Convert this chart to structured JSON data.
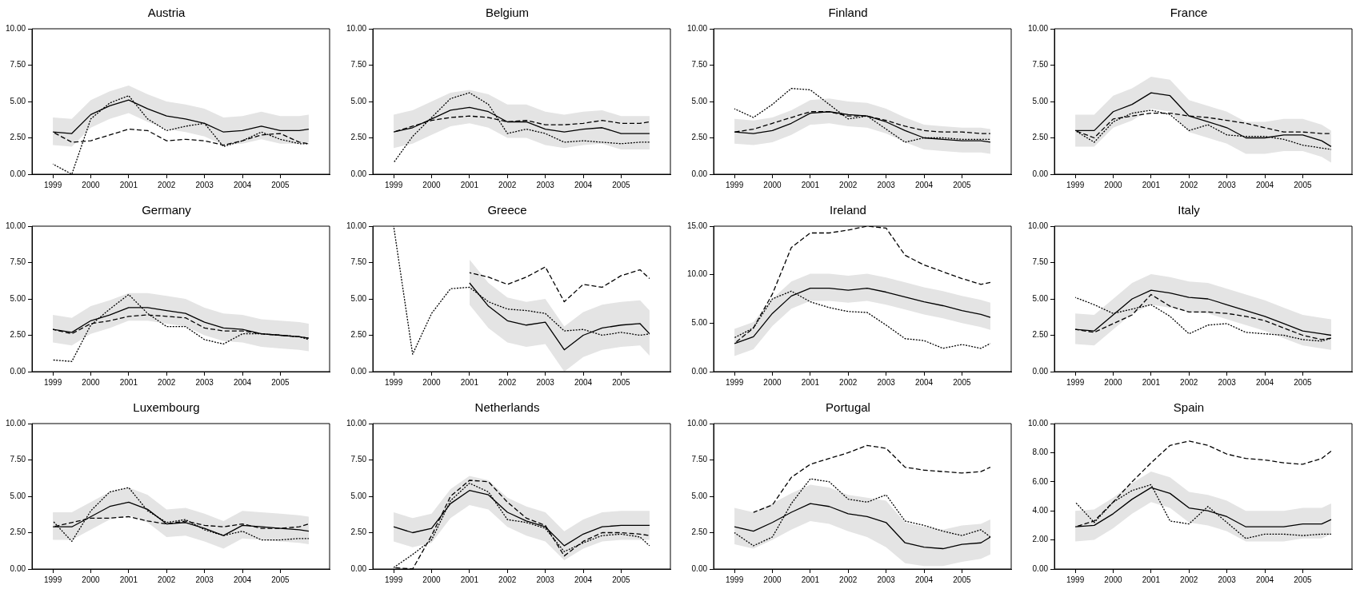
{
  "chart_data": [
    {
      "type": "line",
      "title": "Austria",
      "x": [
        1999,
        1999.5,
        2000,
        2000.5,
        2001,
        2001.5,
        2002,
        2002.5,
        2003,
        2003.5,
        2004,
        2004.5,
        2005,
        2005.5,
        2005.75
      ],
      "xlim": [
        1998.45,
        2006.3
      ],
      "xticks": [
        1999,
        2000,
        2001,
        2002,
        2003,
        2004,
        2005
      ],
      "ylim": [
        0,
        10
      ],
      "yticks": [
        {
          "value": 0,
          "label": "0.00"
        },
        {
          "value": 2.5,
          "label": "2.50"
        },
        {
          "value": 5,
          "label": "5.00"
        },
        {
          "value": 7.5,
          "label": "7.50"
        },
        {
          "value": 10,
          "label": "10.00"
        }
      ],
      "grid": false,
      "legend": false,
      "marker": "none",
      "series": [
        {
          "color": "#000000",
          "line_style": "solid",
          "values": [
            2.9,
            2.8,
            4.1,
            4.7,
            5.1,
            4.5,
            4.0,
            3.8,
            3.5,
            2.9,
            3.0,
            3.3,
            3.0,
            3.0,
            3.1
          ],
          "lower": [
            2.0,
            1.9,
            3.2,
            3.8,
            4.2,
            3.6,
            3.1,
            2.9,
            2.6,
            2.0,
            2.1,
            2.4,
            2.1,
            2.1,
            2.2
          ],
          "upper": [
            3.9,
            3.8,
            5.1,
            5.7,
            6.1,
            5.5,
            5.0,
            4.8,
            4.5,
            3.9,
            4.0,
            4.3,
            4.0,
            4.0,
            4.1
          ]
        },
        {
          "color": "#000000",
          "line_style": "dashed",
          "values": [
            2.9,
            2.2,
            2.3,
            2.7,
            3.1,
            3.0,
            2.3,
            2.4,
            2.3,
            2.0,
            2.3,
            2.7,
            2.8,
            2.2,
            2.1
          ]
        },
        {
          "color": "#000000",
          "line_style": "dotted",
          "values": [
            0.7,
            0.0,
            3.8,
            4.9,
            5.4,
            3.8,
            3.0,
            3.3,
            3.5,
            1.9,
            2.3,
            2.9,
            2.4,
            2.1,
            2.1
          ]
        }
      ]
    },
    {
      "type": "line",
      "title": "Belgium",
      "x": [
        1999,
        1999.5,
        2000,
        2000.5,
        2001,
        2001.5,
        2002,
        2002.5,
        2003,
        2003.5,
        2004,
        2004.5,
        2005,
        2005.5,
        2005.75
      ],
      "xlim": [
        1998.45,
        2006.3
      ],
      "xticks": [
        1999,
        2000,
        2001,
        2002,
        2003,
        2004,
        2005
      ],
      "ylim": [
        0,
        10
      ],
      "yticks": [
        {
          "value": 0,
          "label": "0.00"
        },
        {
          "value": 2.5,
          "label": "2.50"
        },
        {
          "value": 5,
          "label": "5.00"
        },
        {
          "value": 7.5,
          "label": "7.50"
        },
        {
          "value": 10,
          "label": "10.00"
        }
      ],
      "grid": false,
      "legend": false,
      "marker": "none",
      "series": [
        {
          "color": "#000000",
          "line_style": "solid",
          "values": [
            2.9,
            3.2,
            3.8,
            4.4,
            4.6,
            4.3,
            3.6,
            3.6,
            3.1,
            2.9,
            3.1,
            3.2,
            2.8,
            2.8,
            2.8
          ],
          "lower": [
            1.8,
            2.1,
            2.7,
            3.3,
            3.5,
            3.2,
            2.5,
            2.5,
            2.0,
            1.8,
            2.0,
            2.1,
            1.7,
            1.7,
            1.7
          ],
          "upper": [
            4.1,
            4.4,
            5.0,
            5.6,
            5.8,
            5.5,
            4.8,
            4.8,
            4.3,
            4.1,
            4.3,
            4.4,
            4.0,
            4.0,
            4.0
          ]
        },
        {
          "color": "#000000",
          "line_style": "dashed",
          "values": [
            2.9,
            3.3,
            3.7,
            3.9,
            4.0,
            3.9,
            3.6,
            3.7,
            3.4,
            3.4,
            3.5,
            3.7,
            3.5,
            3.5,
            3.6
          ]
        },
        {
          "color": "#000000",
          "line_style": "dotted",
          "values": [
            0.8,
            2.6,
            3.9,
            5.2,
            5.6,
            4.8,
            2.8,
            3.1,
            2.8,
            2.2,
            2.3,
            2.2,
            2.1,
            2.2,
            2.2
          ]
        }
      ]
    },
    {
      "type": "line",
      "title": "Finland",
      "x": [
        1999,
        1999.5,
        2000,
        2000.5,
        2001,
        2001.5,
        2002,
        2002.5,
        2003,
        2003.5,
        2004,
        2004.5,
        2005,
        2005.5,
        2005.75
      ],
      "xlim": [
        1998.45,
        2006.3
      ],
      "xticks": [
        1999,
        2000,
        2001,
        2002,
        2003,
        2004,
        2005
      ],
      "ylim": [
        0,
        10
      ],
      "yticks": [
        {
          "value": 0,
          "label": "0.00"
        },
        {
          "value": 2.5,
          "label": "2.50"
        },
        {
          "value": 5,
          "label": "5.00"
        },
        {
          "value": 7.5,
          "label": "7.50"
        },
        {
          "value": 10,
          "label": "10.00"
        }
      ],
      "grid": false,
      "legend": false,
      "marker": "none",
      "series": [
        {
          "color": "#000000",
          "line_style": "solid",
          "values": [
            2.9,
            2.8,
            3.0,
            3.5,
            4.2,
            4.3,
            4.1,
            4.0,
            3.6,
            3.0,
            2.5,
            2.4,
            2.3,
            2.3,
            2.2
          ],
          "lower": [
            2.1,
            2.0,
            2.2,
            2.7,
            3.4,
            3.5,
            3.3,
            3.2,
            2.8,
            2.2,
            1.7,
            1.6,
            1.5,
            1.5,
            1.4
          ],
          "upper": [
            3.8,
            3.7,
            3.9,
            4.4,
            5.1,
            5.2,
            5.0,
            4.9,
            4.5,
            3.9,
            3.4,
            3.3,
            3.2,
            3.2,
            3.1
          ]
        },
        {
          "color": "#000000",
          "line_style": "dashed",
          "values": [
            2.9,
            3.1,
            3.5,
            3.9,
            4.3,
            4.3,
            4.0,
            4.0,
            3.7,
            3.3,
            3.0,
            2.9,
            2.9,
            2.8,
            2.8
          ]
        },
        {
          "color": "#000000",
          "line_style": "dotted",
          "values": [
            4.5,
            3.9,
            4.8,
            5.9,
            5.8,
            4.8,
            3.8,
            4.0,
            3.1,
            2.2,
            2.5,
            2.5,
            2.4,
            2.4,
            2.4
          ]
        }
      ]
    },
    {
      "type": "line",
      "title": "France",
      "x": [
        1999,
        1999.5,
        2000,
        2000.5,
        2001,
        2001.5,
        2002,
        2002.5,
        2003,
        2003.5,
        2004,
        2004.5,
        2005,
        2005.5,
        2005.75
      ],
      "xlim": [
        1998.45,
        2006.3
      ],
      "xticks": [
        1999,
        2000,
        2001,
        2002,
        2003,
        2004,
        2005
      ],
      "ylim": [
        0,
        10
      ],
      "yticks": [
        {
          "value": 0,
          "label": "0.00"
        },
        {
          "value": 2.5,
          "label": "2.50"
        },
        {
          "value": 5,
          "label": "5.00"
        },
        {
          "value": 7.5,
          "label": "7.50"
        },
        {
          "value": 10,
          "label": "10.00"
        }
      ],
      "grid": false,
      "legend": false,
      "marker": "none",
      "series": [
        {
          "color": "#000000",
          "line_style": "solid",
          "values": [
            3.0,
            3.0,
            4.3,
            4.8,
            5.6,
            5.4,
            4.0,
            3.6,
            3.2,
            2.5,
            2.5,
            2.7,
            2.7,
            2.3,
            1.9
          ],
          "lower": [
            1.9,
            1.9,
            3.2,
            3.7,
            4.5,
            4.3,
            2.9,
            2.5,
            2.1,
            1.4,
            1.4,
            1.6,
            1.6,
            1.2,
            0.8
          ],
          "upper": [
            4.1,
            4.1,
            5.4,
            5.9,
            6.7,
            6.5,
            5.1,
            4.7,
            4.3,
            3.6,
            3.6,
            3.8,
            3.8,
            3.4,
            3.0
          ]
        },
        {
          "color": "#000000",
          "line_style": "dashed",
          "values": [
            3.0,
            2.5,
            3.8,
            4.0,
            4.2,
            4.2,
            4.0,
            3.9,
            3.7,
            3.5,
            3.2,
            2.9,
            2.9,
            2.8,
            2.8
          ]
        },
        {
          "color": "#000000",
          "line_style": "dotted",
          "values": [
            3.0,
            2.2,
            3.6,
            4.2,
            4.4,
            4.1,
            3.0,
            3.4,
            2.7,
            2.6,
            2.6,
            2.4,
            2.0,
            1.8,
            1.7
          ]
        }
      ]
    },
    {
      "type": "line",
      "title": "Germany",
      "x": [
        1999,
        1999.5,
        2000,
        2000.5,
        2001,
        2001.5,
        2002,
        2002.5,
        2003,
        2003.5,
        2004,
        2004.5,
        2005,
        2005.5,
        2005.75
      ],
      "xlim": [
        1998.45,
        2006.3
      ],
      "xticks": [
        1999,
        2000,
        2001,
        2002,
        2003,
        2004,
        2005
      ],
      "ylim": [
        0,
        10
      ],
      "yticks": [
        {
          "value": 0,
          "label": "0.00"
        },
        {
          "value": 2.5,
          "label": "2.50"
        },
        {
          "value": 5,
          "label": "5.00"
        },
        {
          "value": 7.5,
          "label": "7.50"
        },
        {
          "value": 10,
          "label": "10.00"
        }
      ],
      "grid": false,
      "legend": false,
      "marker": "none",
      "series": [
        {
          "color": "#000000",
          "line_style": "solid",
          "values": [
            2.9,
            2.7,
            3.5,
            3.9,
            4.4,
            4.4,
            4.2,
            4.0,
            3.4,
            3.0,
            2.9,
            2.6,
            2.5,
            2.4,
            2.3
          ],
          "lower": [
            2.0,
            1.8,
            2.6,
            3.0,
            3.5,
            3.5,
            3.3,
            3.1,
            2.5,
            2.1,
            2.0,
            1.7,
            1.6,
            1.5,
            1.4
          ],
          "upper": [
            3.9,
            3.7,
            4.5,
            4.9,
            5.4,
            5.4,
            5.2,
            5.0,
            4.4,
            4.0,
            3.9,
            3.6,
            3.5,
            3.4,
            3.3
          ]
        },
        {
          "color": "#000000",
          "line_style": "dashed",
          "values": [
            2.9,
            2.6,
            3.3,
            3.5,
            3.8,
            3.9,
            3.8,
            3.7,
            3.0,
            2.8,
            2.8,
            2.6,
            2.5,
            2.4,
            2.3
          ]
        },
        {
          "color": "#000000",
          "line_style": "dotted",
          "values": [
            0.8,
            0.7,
            3.2,
            4.3,
            5.3,
            4.0,
            3.1,
            3.1,
            2.2,
            1.9,
            2.6,
            2.6,
            2.5,
            2.4,
            2.2
          ]
        }
      ]
    },
    {
      "type": "line",
      "title": "Greece",
      "x": [
        1999,
        1999.5,
        2000,
        2000.5,
        2001,
        2001.5,
        2002,
        2002.5,
        2003,
        2003.5,
        2004,
        2004.5,
        2005,
        2005.5,
        2005.75
      ],
      "xlim": [
        1998.45,
        2006.3
      ],
      "xticks": [
        1999,
        2000,
        2001,
        2002,
        2003,
        2004,
        2005
      ],
      "ylim": [
        0,
        10
      ],
      "yticks": [
        {
          "value": 0,
          "label": "0.00"
        },
        {
          "value": 2.5,
          "label": "2.50"
        },
        {
          "value": 5,
          "label": "5.00"
        },
        {
          "value": 7.5,
          "label": "7.50"
        },
        {
          "value": 10,
          "label": "10.00"
        }
      ],
      "grid": false,
      "legend": false,
      "marker": "none",
      "series": [
        {
          "color": "#000000",
          "line_style": "solid",
          "values": [
            null,
            null,
            null,
            null,
            6.1,
            4.5,
            3.5,
            3.2,
            3.4,
            1.5,
            2.5,
            3.0,
            3.2,
            3.3,
            2.6
          ],
          "lower": [
            null,
            null,
            null,
            null,
            4.6,
            3.0,
            2.0,
            1.7,
            1.9,
            0.0,
            1.0,
            1.5,
            1.7,
            1.8,
            1.1
          ],
          "upper": [
            null,
            null,
            null,
            null,
            7.7,
            6.1,
            5.1,
            4.8,
            5.0,
            3.1,
            4.1,
            4.6,
            4.8,
            4.9,
            4.2
          ]
        },
        {
          "color": "#000000",
          "line_style": "dashed",
          "values": [
            null,
            null,
            null,
            null,
            6.8,
            6.5,
            6.0,
            6.5,
            7.2,
            4.8,
            6.0,
            5.8,
            6.6,
            7.0,
            6.4
          ]
        },
        {
          "color": "#000000",
          "line_style": "dotted",
          "values": [
            10.0,
            1.2,
            4.0,
            5.7,
            5.8,
            4.8,
            4.3,
            4.2,
            4.0,
            2.8,
            2.9,
            2.5,
            2.7,
            2.5,
            2.6
          ]
        }
      ]
    },
    {
      "type": "line",
      "title": "Ireland",
      "x": [
        1999,
        1999.5,
        2000,
        2000.5,
        2001,
        2001.5,
        2002,
        2002.5,
        2003,
        2003.5,
        2004,
        2004.5,
        2005,
        2005.5,
        2005.75
      ],
      "xlim": [
        1998.45,
        2006.3
      ],
      "xticks": [
        1999,
        2000,
        2001,
        2002,
        2003,
        2004,
        2005
      ],
      "ylim": [
        0,
        15
      ],
      "yticks": [
        {
          "value": 0,
          "label": "0.00"
        },
        {
          "value": 5,
          "label": "5.00"
        },
        {
          "value": 10,
          "label": "10.00"
        },
        {
          "value": 15,
          "label": "15.00"
        }
      ],
      "grid": false,
      "legend": false,
      "marker": "none",
      "series": [
        {
          "color": "#000000",
          "line_style": "solid",
          "values": [
            2.9,
            3.6,
            6.0,
            7.8,
            8.6,
            8.6,
            8.4,
            8.6,
            8.2,
            7.7,
            7.2,
            6.8,
            6.3,
            5.9,
            5.6
          ],
          "lower": [
            1.6,
            2.3,
            4.7,
            6.5,
            7.3,
            7.3,
            7.1,
            7.3,
            6.9,
            6.4,
            5.9,
            5.5,
            5.0,
            4.6,
            4.3
          ],
          "upper": [
            4.4,
            5.1,
            7.5,
            9.3,
            10.1,
            10.1,
            9.9,
            10.1,
            9.7,
            9.2,
            8.7,
            8.3,
            7.8,
            7.4,
            7.1
          ]
        },
        {
          "color": "#000000",
          "line_style": "dashed",
          "values": [
            2.9,
            4.5,
            8.0,
            12.8,
            14.3,
            14.3,
            14.6,
            15.0,
            14.8,
            12.0,
            11.0,
            10.3,
            9.6,
            9.0,
            9.2
          ]
        },
        {
          "color": "#000000",
          "line_style": "dotted",
          "values": [
            3.5,
            4.5,
            7.5,
            8.3,
            7.2,
            6.6,
            6.2,
            6.1,
            4.8,
            3.4,
            3.2,
            2.4,
            2.8,
            2.4,
            2.9
          ]
        }
      ]
    },
    {
      "type": "line",
      "title": "Italy",
      "x": [
        1999,
        1999.5,
        2000,
        2000.5,
        2001,
        2001.5,
        2002,
        2002.5,
        2003,
        2003.5,
        2004,
        2004.5,
        2005,
        2005.5,
        2005.75
      ],
      "xlim": [
        1998.45,
        2006.3
      ],
      "xticks": [
        1999,
        2000,
        2001,
        2002,
        2003,
        2004,
        2005
      ],
      "ylim": [
        0,
        10
      ],
      "yticks": [
        {
          "value": 0,
          "label": "0.00"
        },
        {
          "value": 2.5,
          "label": "2.50"
        },
        {
          "value": 5,
          "label": "5.00"
        },
        {
          "value": 7.5,
          "label": "7.50"
        },
        {
          "value": 10,
          "label": "10.00"
        }
      ],
      "grid": false,
      "legend": false,
      "marker": "none",
      "series": [
        {
          "color": "#000000",
          "line_style": "solid",
          "values": [
            2.9,
            2.8,
            3.9,
            5.0,
            5.6,
            5.4,
            5.1,
            5.0,
            4.6,
            4.2,
            3.8,
            3.3,
            2.8,
            2.6,
            2.5
          ],
          "lower": [
            1.9,
            1.8,
            2.9,
            4.0,
            4.6,
            4.4,
            4.1,
            4.0,
            3.6,
            3.2,
            2.8,
            2.3,
            1.8,
            1.6,
            1.5
          ],
          "upper": [
            4.0,
            3.9,
            5.0,
            6.1,
            6.7,
            6.5,
            6.2,
            6.1,
            5.7,
            5.3,
            4.9,
            4.4,
            3.9,
            3.7,
            3.6
          ]
        },
        {
          "color": "#000000",
          "line_style": "dashed",
          "values": [
            2.9,
            2.7,
            3.3,
            3.9,
            5.3,
            4.5,
            4.1,
            4.1,
            4.0,
            3.8,
            3.5,
            3.0,
            2.5,
            2.2,
            2.3
          ]
        },
        {
          "color": "#000000",
          "line_style": "dotted",
          "values": [
            5.1,
            4.6,
            4.0,
            4.3,
            4.6,
            3.8,
            2.6,
            3.2,
            3.3,
            2.7,
            2.6,
            2.5,
            2.2,
            2.1,
            2.3
          ]
        }
      ]
    },
    {
      "type": "line",
      "title": "Luxembourg",
      "x": [
        1999,
        1999.5,
        2000,
        2000.5,
        2001,
        2001.5,
        2002,
        2002.5,
        2003,
        2003.5,
        2004,
        2004.5,
        2005,
        2005.5,
        2005.75
      ],
      "xlim": [
        1998.45,
        2006.3
      ],
      "xticks": [
        1999,
        2000,
        2001,
        2002,
        2003,
        2004,
        2005
      ],
      "ylim": [
        0,
        10
      ],
      "yticks": [
        {
          "value": 0,
          "label": "0.00"
        },
        {
          "value": 2.5,
          "label": "2.50"
        },
        {
          "value": 5,
          "label": "5.00"
        },
        {
          "value": 7.5,
          "label": "7.50"
        },
        {
          "value": 10,
          "label": "10.00"
        }
      ],
      "grid": false,
      "legend": false,
      "marker": "none",
      "series": [
        {
          "color": "#000000",
          "line_style": "solid",
          "values": [
            2.9,
            2.9,
            3.6,
            4.3,
            4.6,
            4.1,
            3.1,
            3.2,
            2.8,
            2.3,
            3.0,
            2.9,
            2.8,
            2.7,
            2.6
          ],
          "lower": [
            2.0,
            2.0,
            2.7,
            3.4,
            3.7,
            3.2,
            2.2,
            2.3,
            1.9,
            1.4,
            2.1,
            2.0,
            1.9,
            1.8,
            1.7
          ],
          "upper": [
            3.9,
            3.9,
            4.6,
            5.3,
            5.6,
            5.1,
            4.1,
            4.2,
            3.8,
            3.3,
            4.0,
            3.9,
            3.8,
            3.7,
            3.6
          ]
        },
        {
          "color": "#000000",
          "line_style": "dashed",
          "values": [
            2.9,
            3.2,
            3.5,
            3.5,
            3.6,
            3.3,
            3.1,
            3.3,
            3.0,
            2.9,
            3.1,
            2.8,
            2.8,
            2.9,
            3.1
          ]
        },
        {
          "color": "#000000",
          "line_style": "dotted",
          "values": [
            3.3,
            1.9,
            4.0,
            5.3,
            5.6,
            4.0,
            3.2,
            3.4,
            2.7,
            2.3,
            2.6,
            2.0,
            2.0,
            2.1,
            2.1
          ]
        }
      ]
    },
    {
      "type": "line",
      "title": "Netherlands",
      "x": [
        1999,
        1999.5,
        2000,
        2000.5,
        2001,
        2001.5,
        2002,
        2002.5,
        2003,
        2003.5,
        2004,
        2004.5,
        2005,
        2005.5,
        2005.75
      ],
      "xlim": [
        1998.45,
        2006.3
      ],
      "xticks": [
        1999,
        2000,
        2001,
        2002,
        2003,
        2004,
        2005
      ],
      "ylim": [
        0,
        10
      ],
      "yticks": [
        {
          "value": 0,
          "label": "0.00"
        },
        {
          "value": 2.5,
          "label": "2.50"
        },
        {
          "value": 5,
          "label": "5.00"
        },
        {
          "value": 7.5,
          "label": "7.50"
        },
        {
          "value": 10,
          "label": "10.00"
        }
      ],
      "grid": false,
      "legend": false,
      "marker": "none",
      "series": [
        {
          "color": "#000000",
          "line_style": "solid",
          "values": [
            2.9,
            2.5,
            2.8,
            4.5,
            5.4,
            5.1,
            3.9,
            3.3,
            2.9,
            1.6,
            2.4,
            2.9,
            3.0,
            3.0,
            3.0
          ],
          "lower": [
            1.9,
            1.5,
            1.8,
            3.5,
            4.4,
            4.1,
            2.9,
            2.3,
            1.9,
            0.6,
            1.4,
            1.9,
            2.0,
            2.0,
            2.0
          ],
          "upper": [
            3.9,
            3.5,
            3.8,
            5.5,
            6.4,
            6.1,
            4.9,
            4.3,
            3.9,
            2.6,
            3.4,
            3.9,
            4.0,
            4.0,
            4.0
          ]
        },
        {
          "color": "#000000",
          "line_style": "dashed",
          "values": [
            0.1,
            0.0,
            2.3,
            5.0,
            6.1,
            6.0,
            4.6,
            3.5,
            3.0,
            0.9,
            1.9,
            2.5,
            2.5,
            2.4,
            2.3
          ]
        },
        {
          "color": "#000000",
          "line_style": "dotted",
          "values": [
            0.1,
            1.0,
            2.0,
            4.7,
            5.9,
            5.3,
            3.4,
            3.2,
            2.8,
            1.2,
            1.8,
            2.3,
            2.4,
            2.2,
            1.6
          ]
        }
      ]
    },
    {
      "type": "line",
      "title": "Portugal",
      "x": [
        1999,
        1999.5,
        2000,
        2000.5,
        2001,
        2001.5,
        2002,
        2002.5,
        2003,
        2003.5,
        2004,
        2004.5,
        2005,
        2005.5,
        2005.75
      ],
      "xlim": [
        1998.45,
        2006.3
      ],
      "xticks": [
        1999,
        2000,
        2001,
        2002,
        2003,
        2004,
        2005
      ],
      "ylim": [
        0,
        10
      ],
      "yticks": [
        {
          "value": 0,
          "label": "0.00"
        },
        {
          "value": 2.5,
          "label": "2.50"
        },
        {
          "value": 5,
          "label": "5.00"
        },
        {
          "value": 7.5,
          "label": "7.50"
        },
        {
          "value": 10,
          "label": "10.00"
        }
      ],
      "grid": false,
      "legend": false,
      "marker": "none",
      "series": [
        {
          "color": "#000000",
          "line_style": "solid",
          "values": [
            2.9,
            2.6,
            3.2,
            3.9,
            4.5,
            4.3,
            3.8,
            3.6,
            3.2,
            1.8,
            1.5,
            1.4,
            1.7,
            1.8,
            2.2
          ],
          "lower": [
            1.7,
            1.4,
            2.0,
            2.7,
            3.3,
            3.1,
            2.6,
            2.2,
            1.5,
            0.4,
            0.2,
            0.2,
            0.5,
            0.7,
            1.0
          ],
          "upper": [
            4.2,
            3.9,
            4.5,
            5.2,
            5.8,
            5.6,
            5.1,
            4.9,
            4.7,
            3.2,
            2.9,
            2.7,
            3.0,
            3.1,
            3.4
          ]
        },
        {
          "color": "#000000",
          "line_style": "dashed",
          "values": [
            null,
            3.9,
            4.4,
            6.3,
            7.2,
            7.6,
            8.0,
            8.5,
            8.3,
            7.0,
            6.8,
            6.7,
            6.6,
            6.7,
            7.0
          ]
        },
        {
          "color": "#000000",
          "line_style": "dotted",
          "values": [
            2.5,
            1.6,
            2.2,
            4.5,
            6.2,
            6.0,
            4.8,
            4.6,
            5.1,
            3.3,
            3.0,
            2.6,
            2.3,
            2.7,
            2.2
          ]
        }
      ]
    },
    {
      "type": "line",
      "title": "Spain",
      "x": [
        1999,
        1999.5,
        2000,
        2000.5,
        2001,
        2001.5,
        2002,
        2002.5,
        2003,
        2003.5,
        2004,
        2004.5,
        2005,
        2005.5,
        2005.75
      ],
      "xlim": [
        1998.45,
        2006.3
      ],
      "xticks": [
        1999,
        2000,
        2001,
        2002,
        2003,
        2004,
        2005
      ],
      "ylim": [
        0,
        10
      ],
      "yticks": [
        {
          "value": 0,
          "label": "0.00"
        },
        {
          "value": 2,
          "label": "2.00"
        },
        {
          "value": 4,
          "label": "4.00"
        },
        {
          "value": 6,
          "label": "6.00"
        },
        {
          "value": 8,
          "label": "8.00"
        },
        {
          "value": 10,
          "label": "10.00"
        }
      ],
      "grid": false,
      "legend": false,
      "marker": "none",
      "series": [
        {
          "color": "#000000",
          "line_style": "solid",
          "values": [
            2.9,
            3.0,
            3.8,
            4.8,
            5.6,
            5.2,
            4.2,
            4.0,
            3.6,
            2.9,
            2.9,
            2.9,
            3.1,
            3.1,
            3.4
          ],
          "lower": [
            1.9,
            2.0,
            2.8,
            3.8,
            4.6,
            4.2,
            3.2,
            3.0,
            2.6,
            1.9,
            1.9,
            1.9,
            2.1,
            2.1,
            2.4
          ],
          "upper": [
            4.0,
            4.1,
            4.9,
            5.9,
            6.7,
            6.3,
            5.3,
            5.1,
            4.7,
            4.0,
            4.0,
            4.0,
            4.2,
            4.2,
            4.5
          ]
        },
        {
          "color": "#000000",
          "line_style": "dashed",
          "values": [
            2.9,
            3.3,
            4.6,
            6.0,
            7.3,
            8.5,
            8.8,
            8.5,
            7.9,
            7.6,
            7.5,
            7.3,
            7.2,
            7.6,
            8.1
          ]
        },
        {
          "color": "#000000",
          "line_style": "dotted",
          "values": [
            4.6,
            3.2,
            4.6,
            5.4,
            5.8,
            3.3,
            3.1,
            4.3,
            3.2,
            2.1,
            2.4,
            2.4,
            2.3,
            2.4,
            2.4
          ]
        }
      ]
    }
  ]
}
